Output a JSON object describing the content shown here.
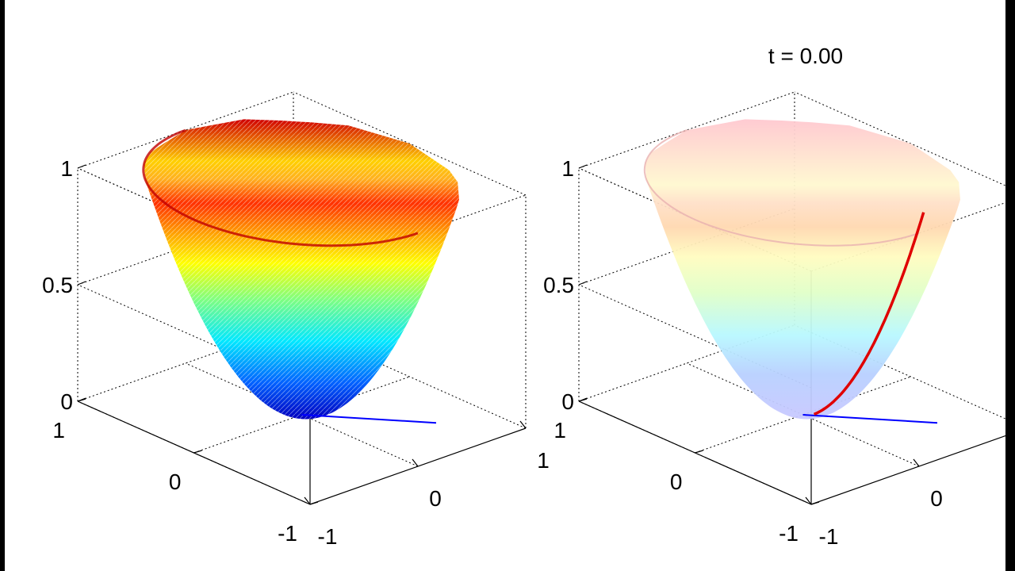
{
  "chart_data": [
    {
      "type": "surface3d",
      "title": "",
      "surface": "z = x^2 + y^2 (paraboloid bowl)",
      "xlim": [
        -1,
        1
      ],
      "ylim": [
        -1,
        1
      ],
      "zlim": [
        0,
        1
      ],
      "x_ticks": [
        "-1",
        "0",
        "1"
      ],
      "y_ticks": [
        "-1",
        "0",
        "1"
      ],
      "z_ticks": [
        "0",
        "0.5",
        "1"
      ],
      "colormap": "jet",
      "grid": true,
      "line": {
        "color": "#0000ff",
        "from": [
          0,
          0,
          0
        ],
        "to": [
          0.6,
          0.6,
          0
        ]
      }
    },
    {
      "type": "surface3d",
      "title": "t = 0.00",
      "surface": "z = x^2 + y^2 (paraboloid bowl, translucent)",
      "xlim": [
        -1,
        1
      ],
      "ylim": [
        -1,
        1
      ],
      "zlim": [
        0,
        1
      ],
      "x_ticks": [
        "-1",
        "0",
        "1"
      ],
      "y_ticks": [
        "-1",
        "0",
        "1"
      ],
      "z_ticks": [
        "0",
        "0.5",
        "1"
      ],
      "colormap": "jet",
      "grid": true,
      "line": {
        "color": "#0000ff",
        "from": [
          0,
          0,
          0
        ],
        "to": [
          0.6,
          0.6,
          0
        ]
      },
      "trajectory": {
        "color": "#e00000"
      }
    }
  ],
  "colors": {
    "frame": "#000000",
    "background": "#ffffff",
    "grid": "#000000"
  }
}
